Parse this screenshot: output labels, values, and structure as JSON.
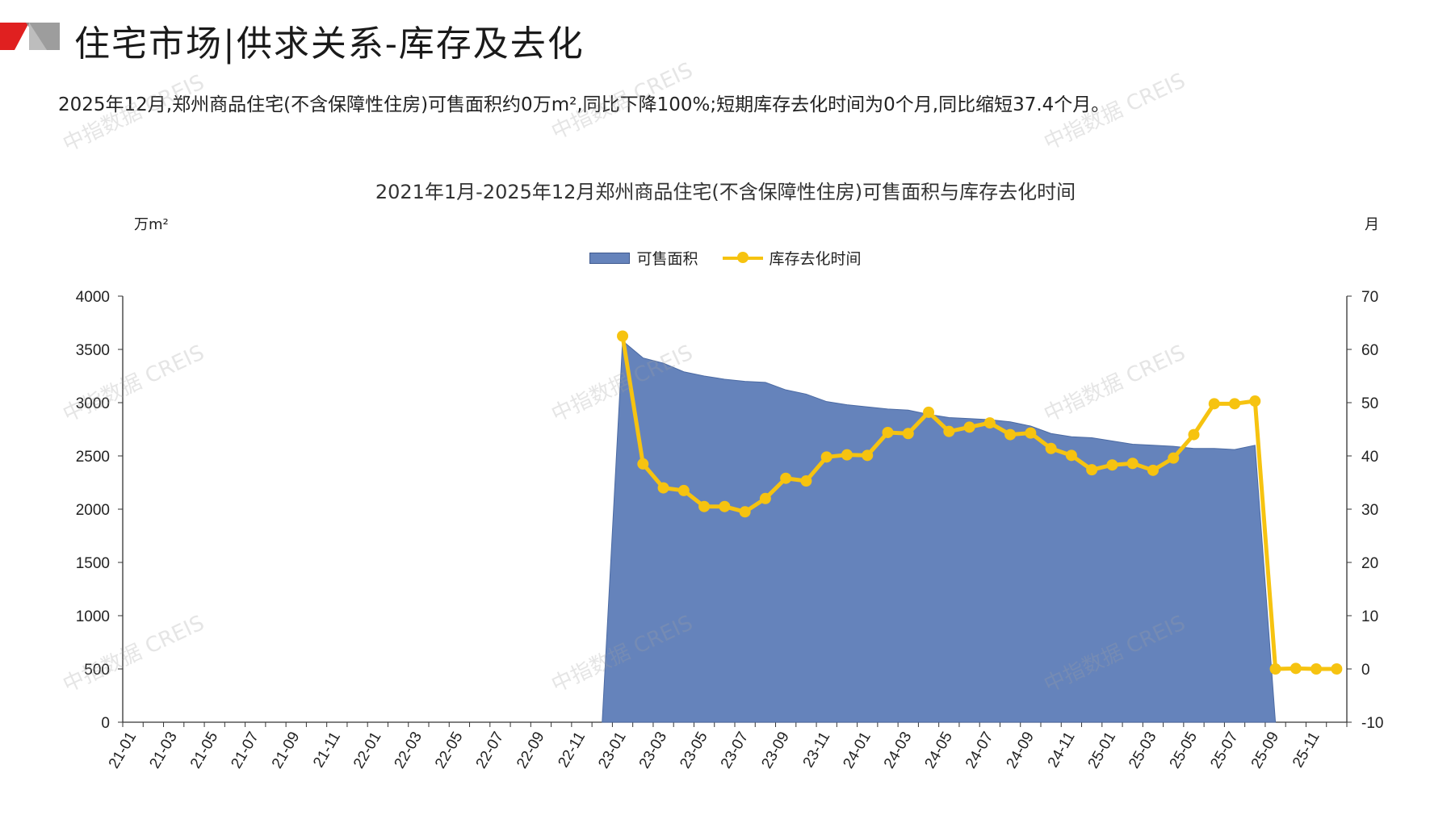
{
  "page": {
    "title": "住宅市场|供求关系-库存及去化",
    "summary": "2025年12月,郑州商品住宅(不含保障性住房)可售面积约0万m²,同比下降100%;短期库存去化时间为0个月,同比缩短37.4个月。",
    "watermark": "中指数据 CREIS"
  },
  "colors": {
    "area": "#6583bb",
    "line": "#f6c310",
    "logo_red": "#e02020",
    "logo_gray": "#8c8c8c"
  },
  "chart_data": {
    "type": "area",
    "title": "2021年1月-2025年12月郑州商品住宅(不含保障性住房)可售面积与库存去化时间",
    "ylabel_left": "万m²",
    "ylabel_right": "月",
    "legend": [
      "可售面积",
      "库存去化时间"
    ],
    "legend_position": "top",
    "grid": false,
    "ylim_left": [
      0,
      4000
    ],
    "yticks_left": [
      0,
      500,
      1000,
      1500,
      2000,
      2500,
      3000,
      3500,
      4000
    ],
    "ylim_right": [
      -10,
      70
    ],
    "yticks_right": [
      -10,
      0,
      10,
      20,
      30,
      40,
      50,
      60,
      70
    ],
    "x_tick_labels": [
      "21-01",
      "21-03",
      "21-05",
      "21-07",
      "21-09",
      "21-11",
      "22-01",
      "22-03",
      "22-05",
      "22-07",
      "22-09",
      "22-11",
      "23-01",
      "23-03",
      "23-05",
      "23-07",
      "23-09",
      "23-11",
      "24-01",
      "24-03",
      "24-05",
      "24-07",
      "24-09",
      "24-11",
      "25-01",
      "25-03",
      "25-05",
      "25-07",
      "25-09",
      "25-11"
    ],
    "categories": [
      "21-01",
      "21-02",
      "21-03",
      "21-04",
      "21-05",
      "21-06",
      "21-07",
      "21-08",
      "21-09",
      "21-10",
      "21-11",
      "21-12",
      "22-01",
      "22-02",
      "22-03",
      "22-04",
      "22-05",
      "22-06",
      "22-07",
      "22-08",
      "22-09",
      "22-10",
      "22-11",
      "22-12",
      "23-01",
      "23-02",
      "23-03",
      "23-04",
      "23-05",
      "23-06",
      "23-07",
      "23-08",
      "23-09",
      "23-10",
      "23-11",
      "23-12",
      "24-01",
      "24-02",
      "24-03",
      "24-04",
      "24-05",
      "24-06",
      "24-07",
      "24-08",
      "24-09",
      "24-10",
      "24-11",
      "24-12",
      "25-01",
      "25-02",
      "25-03",
      "25-04",
      "25-05",
      "25-06",
      "25-07",
      "25-08",
      "25-09",
      "25-10",
      "25-11",
      "25-12"
    ],
    "series": [
      {
        "name": "可售面积",
        "axis": "left",
        "type": "area",
        "values": [
          null,
          null,
          null,
          null,
          null,
          null,
          null,
          null,
          null,
          null,
          null,
          null,
          null,
          null,
          null,
          null,
          null,
          null,
          null,
          null,
          null,
          null,
          null,
          0,
          3580,
          3420,
          3370,
          3290,
          3250,
          3220,
          3200,
          3190,
          3120,
          3080,
          3010,
          2980,
          2960,
          2940,
          2930,
          2890,
          2860,
          2850,
          2840,
          2820,
          2780,
          2710,
          2680,
          2670,
          2640,
          2610,
          2600,
          2590,
          2570,
          2570,
          2560,
          2600,
          0,
          null,
          null,
          null
        ]
      },
      {
        "name": "库存去化时间",
        "axis": "right",
        "type": "line",
        "values": [
          null,
          null,
          null,
          null,
          null,
          null,
          null,
          null,
          null,
          null,
          null,
          null,
          null,
          null,
          null,
          null,
          null,
          null,
          null,
          null,
          null,
          null,
          null,
          null,
          62.5,
          38.5,
          34,
          33.5,
          30.5,
          30.5,
          29.5,
          32,
          35.8,
          35.3,
          39.8,
          40.2,
          40.1,
          44.4,
          44.2,
          48.2,
          44.6,
          45.4,
          46.2,
          44,
          44.3,
          41.4,
          40.1,
          37.4,
          38.3,
          38.6,
          37.3,
          39.6,
          44,
          49.8,
          49.8,
          50.3,
          0,
          0.1,
          0,
          0
        ]
      }
    ]
  }
}
